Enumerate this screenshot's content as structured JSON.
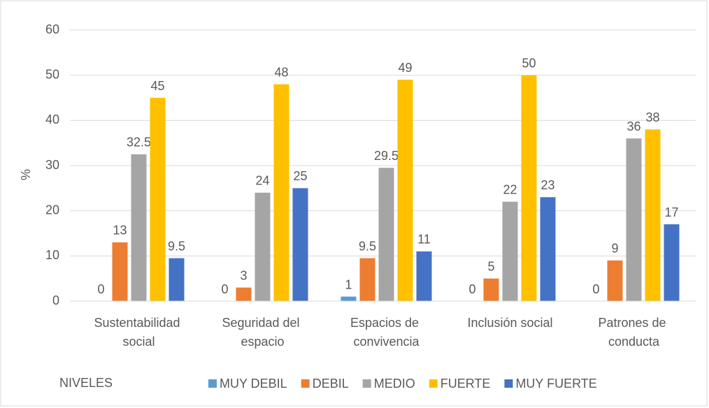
{
  "chart_data": {
    "type": "bar",
    "y_label": "%",
    "legend_title": "NIVELES",
    "categories": [
      "Sustentabilidad social",
      "Seguridad del espacio",
      "Espacios de convivencia",
      "Inclusión social",
      "Patrones de conducta"
    ],
    "series": [
      {
        "name": "MUY DEBIL",
        "color": "#5b9bd5",
        "values": [
          0,
          0,
          1,
          0,
          0
        ]
      },
      {
        "name": "DEBIL",
        "color": "#ed7d31",
        "values": [
          13,
          3,
          9.5,
          5,
          9
        ]
      },
      {
        "name": "MEDIO",
        "color": "#a5a5a5",
        "values": [
          32.5,
          24,
          29.5,
          22,
          36
        ]
      },
      {
        "name": "FUERTE",
        "color": "#ffc000",
        "values": [
          45,
          48,
          49,
          50,
          38
        ]
      },
      {
        "name": "MUY FUERTE",
        "color": "#4472c4",
        "values": [
          9.5,
          25,
          11,
          23,
          17
        ]
      }
    ],
    "ylim": [
      0,
      60
    ],
    "yticks": [
      0,
      10,
      20,
      30,
      40,
      50,
      60
    ],
    "grid": true,
    "legend": "bottom"
  }
}
